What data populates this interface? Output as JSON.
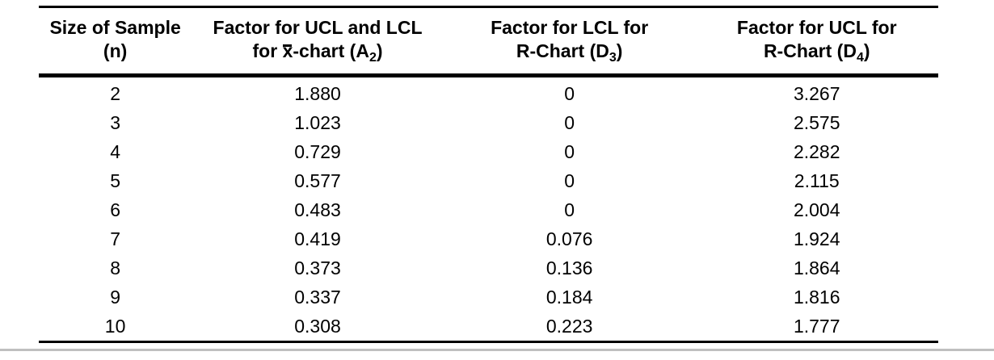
{
  "colors": {
    "background": "#ffffff",
    "text": "#000000",
    "rule": "#000000",
    "bottom_divider": "#bfbfbf"
  },
  "table": {
    "column_keys": [
      "n",
      "a2",
      "d3",
      "d4"
    ],
    "columns": [
      {
        "line1": "Size of Sample",
        "line2": [
          {
            "text": "(n)"
          }
        ]
      },
      {
        "line1": "Factor for UCL and LCL",
        "line2": [
          {
            "text": "for "
          },
          {
            "text": "x",
            "overbar": true
          },
          {
            "text": "-chart (A"
          },
          {
            "text": "2",
            "subscript": true
          },
          {
            "text": ")"
          }
        ]
      },
      {
        "line1": "Factor for LCL for",
        "line2": [
          {
            "text": "R-Chart (D"
          },
          {
            "text": "3",
            "subscript": true
          },
          {
            "text": ")"
          }
        ]
      },
      {
        "line1": "Factor for UCL for",
        "line2": [
          {
            "text": "R-Chart (D"
          },
          {
            "text": "4",
            "subscript": true
          },
          {
            "text": ")"
          }
        ]
      }
    ],
    "rows": [
      [
        "2",
        "1.880",
        "0",
        "3.267"
      ],
      [
        "3",
        "1.023",
        "0",
        "2.575"
      ],
      [
        "4",
        "0.729",
        "0",
        "2.282"
      ],
      [
        "5",
        "0.577",
        "0",
        "2.115"
      ],
      [
        "6",
        "0.483",
        "0",
        "2.004"
      ],
      [
        "7",
        "0.419",
        "0.076",
        "1.924"
      ],
      [
        "8",
        "0.373",
        "0.136",
        "1.864"
      ],
      [
        "9",
        "0.337",
        "0.184",
        "1.816"
      ],
      [
        "10",
        "0.308",
        "0.223",
        "1.777"
      ]
    ]
  },
  "chart_data": {
    "type": "table",
    "columns": [
      "Size of Sample (n)",
      "Factor for UCL and LCL for x̄-chart (A2)",
      "Factor for LCL for R-Chart (D3)",
      "Factor for UCL for R-Chart (D4)"
    ],
    "rows": [
      [
        2,
        1.88,
        0,
        3.267
      ],
      [
        3,
        1.023,
        0,
        2.575
      ],
      [
        4,
        0.729,
        0,
        2.282
      ],
      [
        5,
        0.577,
        0,
        2.115
      ],
      [
        6,
        0.483,
        0,
        2.004
      ],
      [
        7,
        0.419,
        0.076,
        1.924
      ],
      [
        8,
        0.373,
        0.136,
        1.864
      ],
      [
        9,
        0.337,
        0.184,
        1.816
      ],
      [
        10,
        0.308,
        0.223,
        1.777
      ]
    ]
  }
}
